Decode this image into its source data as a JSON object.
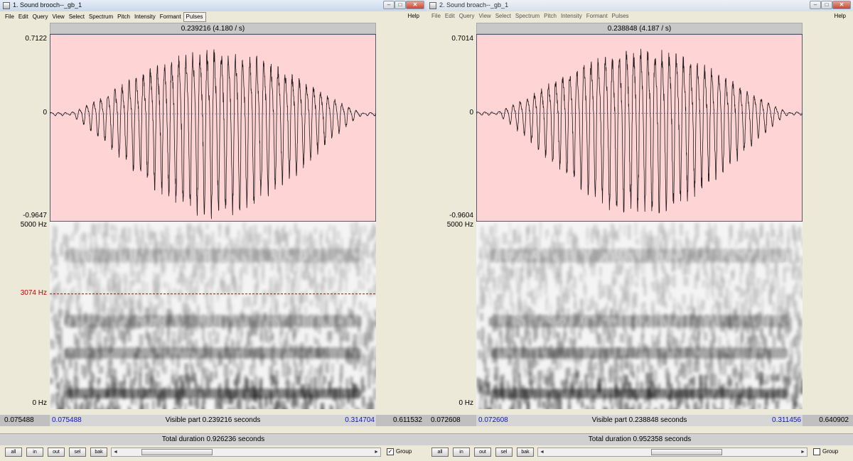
{
  "windows": [
    {
      "title": "1. Sound brooch--_gb_1",
      "window_buttons": {
        "minimize": "–",
        "maximize": "□",
        "close": "✕"
      },
      "menu": [
        "File",
        "Edit",
        "Query",
        "View",
        "Select",
        "Spectrum",
        "Pitch",
        "Intensity",
        "Formant",
        "Pulses"
      ],
      "help": "Help",
      "selection_info": "0.239216 (4.180 / s)",
      "wave_y_max": "0.7122",
      "wave_y_zero": "0",
      "wave_y_min": "-0.9647",
      "spec_y_max": "5000 Hz",
      "spec_y_min": "0 Hz",
      "cursor_freq": "3074 Hz",
      "left_time": "0.075488",
      "visible_start": "0.075488",
      "visible_part": "Visible part 0.239216 seconds",
      "visible_end": "0.314704",
      "right_time": "0.611532",
      "total_duration": "Total duration 0.926236 seconds",
      "zoom_buttons": [
        "all",
        "in",
        "out",
        "sel",
        "bak"
      ],
      "scroll_arrows": {
        "left": "◄",
        "right": "►"
      },
      "group_label": "Group",
      "group_checked": "✓"
    },
    {
      "title": "2. Sound broach--_gb_1",
      "window_buttons": {
        "minimize": "–",
        "maximize": "□",
        "close": "✕"
      },
      "menu": [
        "File",
        "Edit",
        "Query",
        "View",
        "Select",
        "Spectrum",
        "Pitch",
        "Intensity",
        "Formant",
        "Pulses"
      ],
      "help": "Help",
      "selection_info": "0.238848 (4.187 / s)",
      "wave_y_max": "0.7014",
      "wave_y_zero": "0",
      "wave_y_min": "-0.9604",
      "spec_y_max": "5000 Hz",
      "spec_y_min": "0 Hz",
      "left_time": "0.072608",
      "visible_start": "0.072608",
      "visible_part": "Visible part 0.238848 seconds",
      "visible_end": "0.311456",
      "right_time": "0.640902",
      "total_duration": "Total duration 0.952358 seconds",
      "zoom_buttons": [
        "all",
        "in",
        "out",
        "sel",
        "bak"
      ],
      "scroll_arrows": {
        "left": "◄",
        "right": "►"
      },
      "group_label": "Group",
      "group_checked": ""
    }
  ],
  "colors": {
    "selection_bg": "#ffd4d4",
    "cursor_line": "#c00000",
    "time_value_blue": "#1010cc"
  }
}
